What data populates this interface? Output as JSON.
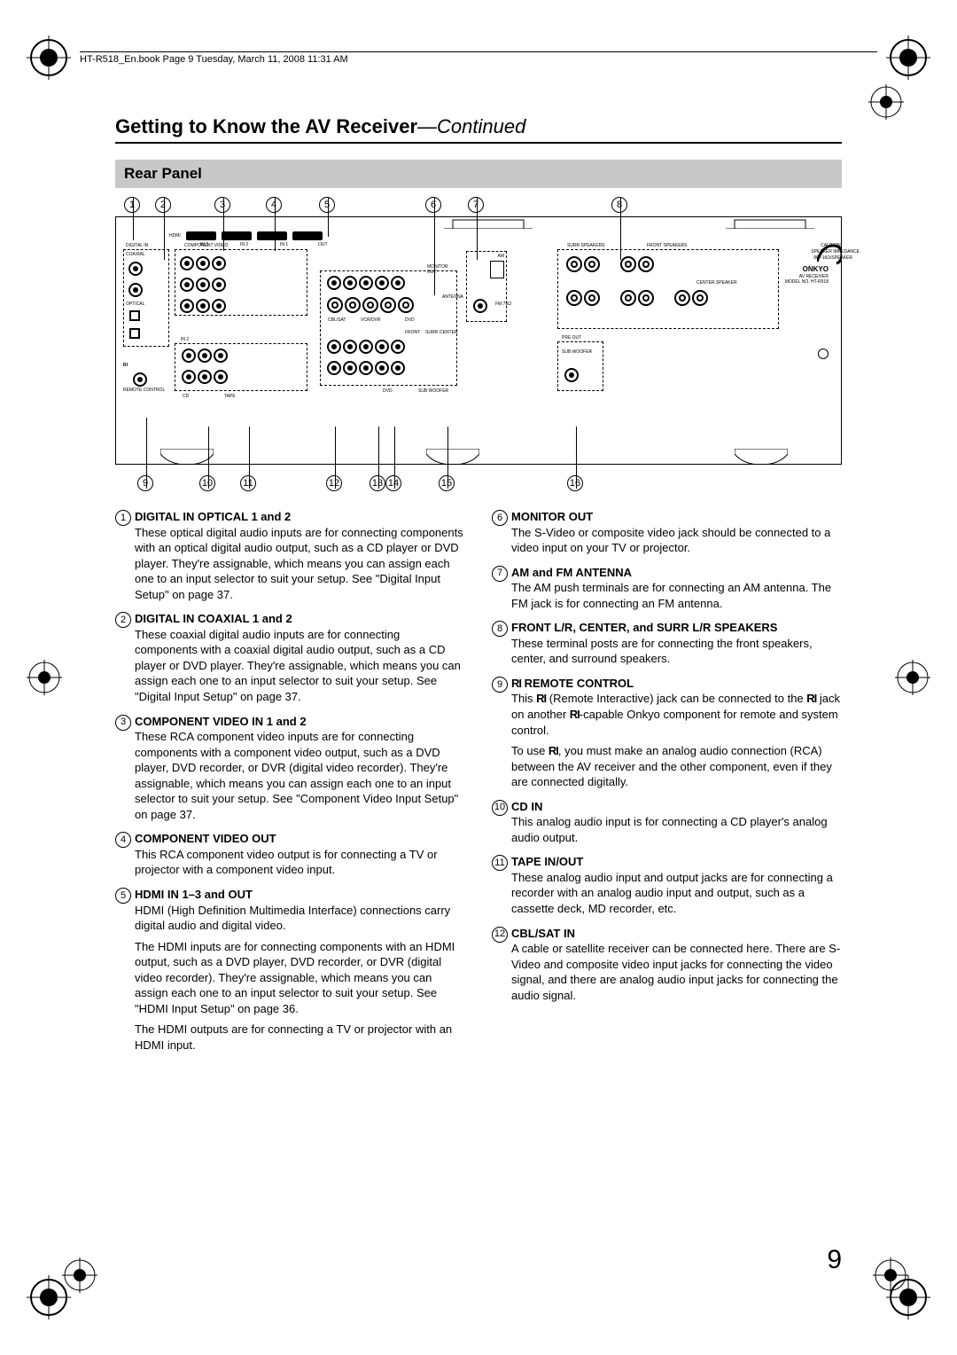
{
  "header": "HT-R518_En.book  Page 9  Tuesday, March 11, 2008  11:31 AM",
  "title_main": "Getting to Know the AV Receiver",
  "title_cont": "—Continued",
  "section": "Rear Panel",
  "callouts_top": [
    "1",
    "2",
    "3",
    "4",
    "5",
    "6",
    "7",
    "8"
  ],
  "callouts_bot": [
    "9",
    "10",
    "11",
    "12",
    "13",
    "14",
    "15",
    "16"
  ],
  "diagram_labels": {
    "hdmi": "HDMI",
    "digital_in": "DIGITAL IN",
    "coaxial": "COAXIAL",
    "optical": "OPTICAL",
    "component_video": "COMPONENT VIDEO",
    "in1": "IN 1",
    "in2": "IN 2",
    "in3": "IN 3",
    "out": "OUT",
    "cblsat": "CBL/SAT",
    "vcrdvr": "VCR/DVR",
    "dvd": "DVD",
    "monitor_out": "MONITOR OUT",
    "antenna": "ANTENNA",
    "am": "AM",
    "fm": "FM  75Ω",
    "surr_speakers": "SURR SPEAKERS",
    "front_speakers": "FRONT SPEAKERS",
    "center_speaker": "CENTER SPEAKER",
    "pre_out": "PRE OUT",
    "sub_woofer": "SUB WOOFER",
    "remote_control": "REMOTE CONTROL",
    "cd": "CD",
    "tape": "TAPE",
    "front": "FRONT",
    "surr": "SURR",
    "center": "CENTER",
    "caution": "CAUTION:",
    "impedance": "SPEAKER IMPEDANCE",
    "ohms": "8Ω~16Ω/SPEAKER",
    "brand": "ONKYO",
    "model_line": "AV RECEIVER",
    "model_no": "MODEL NO. HT-R518",
    "ri": "RI"
  },
  "left_items": [
    {
      "num": "1",
      "title": "DIGITAL IN OPTICAL 1 and 2",
      "body": "These optical digital audio inputs are for connecting components with an optical digital audio output, such as a CD player or DVD player. They're assignable, which means you can assign each one to an input selector to suit your setup. See \"Digital Input Setup\" on page 37."
    },
    {
      "num": "2",
      "title": "DIGITAL IN COAXIAL 1 and 2",
      "body": "These coaxial digital audio inputs are for connecting components with a coaxial digital audio output, such as a CD player or DVD player. They're assignable, which means you can assign each one to an input selector to suit your setup. See \"Digital Input Setup\" on page 37."
    },
    {
      "num": "3",
      "title": "COMPONENT VIDEO IN 1 and 2",
      "body": "These RCA component video inputs are for connecting components with a component video output, such as a DVD player, DVD recorder, or DVR (digital video recorder). They're assignable, which means you can assign each one to an input selector to suit your setup. See \"Component Video Input Setup\" on page 37."
    },
    {
      "num": "4",
      "title": "COMPONENT VIDEO OUT",
      "body": "This RCA component video output is for connecting a TV or projector with a component video input."
    },
    {
      "num": "5",
      "title": "HDMI IN 1–3 and OUT",
      "body": "HDMI (High Definition Multimedia Interface) connections carry digital audio and digital video.",
      "body2": "The HDMI inputs are for connecting components with an HDMI output, such as a DVD player, DVD recorder, or DVR (digital video recorder). They're assignable, which means you can assign each one to an input selector to suit your setup. See \"HDMI Input Setup\" on page 36.",
      "body3": "The HDMI outputs are for connecting a TV or projector with an HDMI input."
    }
  ],
  "right_items": [
    {
      "num": "6",
      "title": "MONITOR OUT",
      "body": "The S-Video or composite video jack should be connected to a video input on your TV or projector."
    },
    {
      "num": "7",
      "title": "AM and FM ANTENNA",
      "body": "The AM push terminals are for connecting an AM antenna. The FM jack is for connecting an FM antenna."
    },
    {
      "num": "8",
      "title": "FRONT L/R, CENTER, and SURR L/R SPEAKERS",
      "body": "These terminal posts are for connecting the front speakers, center, and surround speakers."
    },
    {
      "num": "9",
      "title": " REMOTE CONTROL",
      "ri_prefix": true,
      "body": "This   (Remote Interactive) jack can be connected to the   jack on another  -capable Onkyo component for remote and system control.",
      "body2": "To use  , you must make an analog audio connection (RCA) between the AV receiver and the other component, even if they are connected digitally."
    },
    {
      "num": "10",
      "title": "CD IN",
      "body": "This analog audio input is for connecting a CD player's analog audio output."
    },
    {
      "num": "11",
      "title": "TAPE IN/OUT",
      "body": "These analog audio input and output jacks are for connecting a recorder with an analog audio input and output, such as a cassette deck, MD recorder, etc."
    },
    {
      "num": "12",
      "title": "CBL/SAT IN",
      "body": "A cable or satellite receiver can be connected here. There are S-Video and composite video input jacks for connecting the video signal, and there are analog audio input jacks for connecting the audio signal."
    }
  ],
  "page_number": "9",
  "colors": {
    "section_bg": "#c8c8c8",
    "text": "#000000",
    "bg": "#ffffff"
  }
}
